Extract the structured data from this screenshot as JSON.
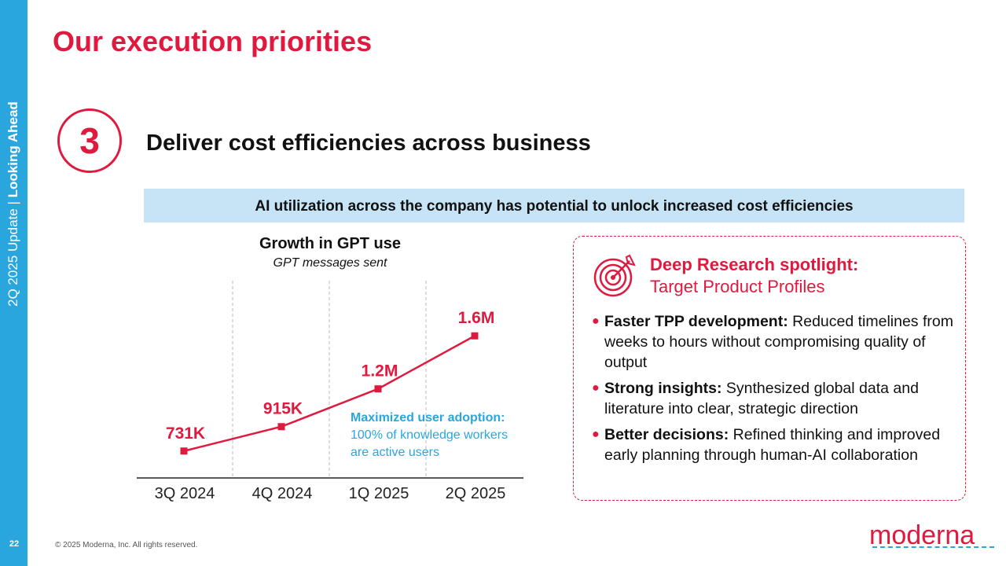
{
  "sidebar": {
    "section_thin": "2Q 2025 Update",
    "separator": " | ",
    "section_bold": "Looking Ahead",
    "page_number": "22"
  },
  "page_title": "Our execution priorities",
  "priority": {
    "number": "3",
    "title": "Deliver cost efficiencies across business"
  },
  "banner": "AI utilization across the company has potential to unlock increased cost efficiencies",
  "chart": {
    "title": "Growth in GPT use",
    "subtitle": "GPT messages sent"
  },
  "chart_data": {
    "type": "line",
    "title": "Growth in GPT use",
    "subtitle": "GPT messages sent",
    "categories": [
      "3Q 2024",
      "4Q 2024",
      "1Q 2025",
      "2Q 2025"
    ],
    "values": [
      731000,
      915000,
      1200000,
      1600000
    ],
    "data_labels": [
      "731K",
      "915K",
      "1.2M",
      "1.6M"
    ],
    "xlabel": "",
    "ylabel": "",
    "ylim": [
      0,
      1800000
    ],
    "color": "#e0193f"
  },
  "adoption": {
    "head": "Maximized user adoption:",
    "line1": "100% of knowledge workers",
    "line2": "are active users"
  },
  "spotlight": {
    "title": "Deep Research spotlight:",
    "subtitle": "Target Product Profiles",
    "icon": "target-icon",
    "bullets": [
      {
        "lead": "Faster TPP development:",
        "text": " Reduced timelines from weeks to hours without compromising quality of output"
      },
      {
        "lead": "Strong insights:",
        "text": " Synthesized global data and literature into clear, strategic direction"
      },
      {
        "lead": "Better decisions:",
        "text": " Refined thinking and improved early planning through human-AI collaboration"
      }
    ]
  },
  "footer": {
    "copyright": "© 2025 Moderna, Inc. All rights reserved.",
    "logo": "moderna"
  },
  "colors": {
    "accent": "#e0193f",
    "blue": "#2aa6df",
    "banner_bg": "#c6e4f5"
  }
}
